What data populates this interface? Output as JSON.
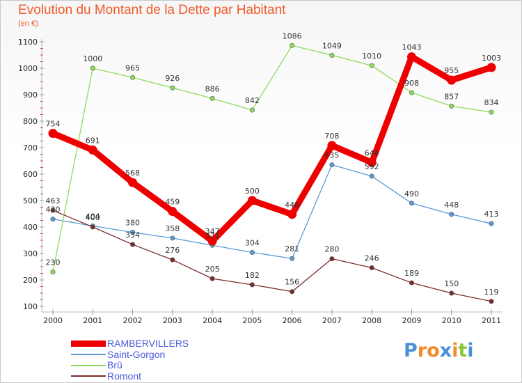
{
  "chart_data": {
    "type": "line",
    "title": "Evolution du Montant de la Dette par Habitant",
    "subtitle": "(en €)",
    "xlabel": "",
    "ylabel": "",
    "x": [
      "2000",
      "2001",
      "2002",
      "2003",
      "2004",
      "2005",
      "2006",
      "2007",
      "2008",
      "2009",
      "2010",
      "2011"
    ],
    "ylim": [
      100,
      1100
    ],
    "yticks": [
      "100",
      "200",
      "300",
      "400",
      "500",
      "600",
      "700",
      "800",
      "900",
      "1000",
      "1100"
    ],
    "grid": false,
    "legend_position": "bottom-left",
    "series": [
      {
        "name": "RAMBERVILLERS",
        "values": [
          754,
          691,
          568,
          459,
          347,
          500,
          448,
          708,
          644,
          1043,
          955,
          1003
        ],
        "color": "#ee0000",
        "emphasis": true
      },
      {
        "name": "Saint-Gorgon",
        "values": [
          430,
          404,
          380,
          358,
          331,
          304,
          281,
          635,
          592,
          490,
          448,
          413
        ],
        "color": "#5b9bd5",
        "emphasis": false
      },
      {
        "name": "Brû",
        "values": [
          230,
          1000,
          965,
          926,
          886,
          842,
          1086,
          1049,
          1010,
          908,
          857,
          834
        ],
        "color": "#8edb5b",
        "emphasis": false
      },
      {
        "name": "Romont",
        "values": [
          463,
          400,
          334,
          276,
          205,
          182,
          156,
          280,
          246,
          189,
          150,
          119
        ],
        "color": "#7a2b2b",
        "emphasis": false
      }
    ]
  },
  "brand": {
    "text": "Proxiti",
    "colors": [
      "#4a90d9",
      "#f28c28",
      "#f28c28",
      "#4a90d9",
      "#f28c28",
      "#8cc63f",
      "#4a90d9"
    ]
  }
}
